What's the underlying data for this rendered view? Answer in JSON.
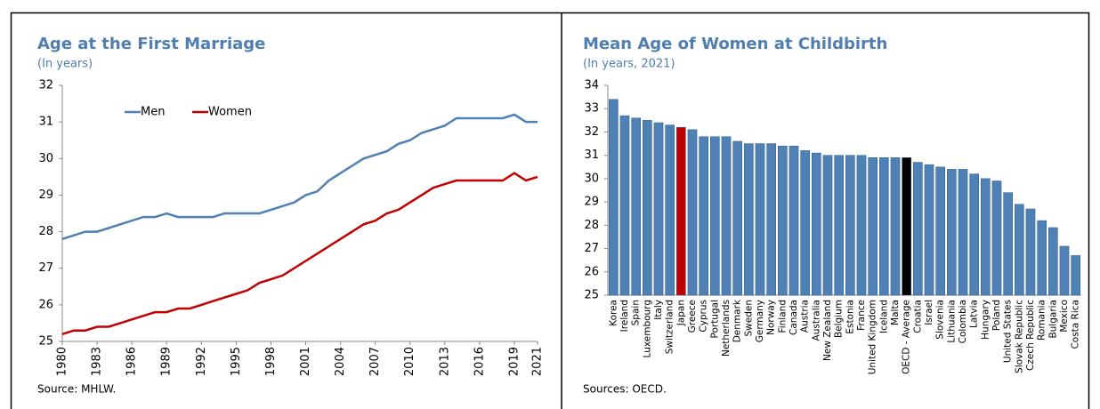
{
  "chart_data": [
    {
      "type": "line",
      "title": "Age at the First Marriage",
      "subtitle": "(In years)",
      "source": "Source: MHLW.",
      "x": [
        1980,
        1981,
        1982,
        1983,
        1984,
        1985,
        1986,
        1987,
        1988,
        1989,
        1990,
        1991,
        1992,
        1993,
        1994,
        1995,
        1996,
        1997,
        1998,
        1999,
        2000,
        2001,
        2002,
        2003,
        2004,
        2005,
        2006,
        2007,
        2008,
        2009,
        2010,
        2011,
        2012,
        2013,
        2014,
        2015,
        2016,
        2017,
        2018,
        2019,
        2020,
        2021
      ],
      "series": [
        {
          "name": "Men",
          "color": "#4f81b4",
          "values": [
            27.8,
            27.9,
            28.0,
            28.0,
            28.1,
            28.2,
            28.3,
            28.4,
            28.4,
            28.5,
            28.4,
            28.4,
            28.4,
            28.4,
            28.5,
            28.5,
            28.5,
            28.5,
            28.6,
            28.7,
            28.8,
            29.0,
            29.1,
            29.4,
            29.6,
            29.8,
            30.0,
            30.1,
            30.2,
            30.4,
            30.5,
            30.7,
            30.8,
            30.9,
            31.1,
            31.1,
            31.1,
            31.1,
            31.1,
            31.2,
            31.0,
            31.0
          ]
        },
        {
          "name": "Women",
          "color": "#c00000",
          "values": [
            25.2,
            25.3,
            25.3,
            25.4,
            25.4,
            25.5,
            25.6,
            25.7,
            25.8,
            25.8,
            25.9,
            25.9,
            26.0,
            26.1,
            26.2,
            26.3,
            26.4,
            26.6,
            26.7,
            26.8,
            27.0,
            27.2,
            27.4,
            27.6,
            27.8,
            28.0,
            28.2,
            28.3,
            28.5,
            28.6,
            28.8,
            29.0,
            29.2,
            29.3,
            29.4,
            29.4,
            29.4,
            29.4,
            29.4,
            29.6,
            29.4,
            29.5
          ]
        }
      ],
      "xlim": [
        1980,
        2021
      ],
      "xticks": [
        1980,
        1983,
        1986,
        1989,
        1992,
        1995,
        1998,
        2001,
        2004,
        2007,
        2010,
        2013,
        2016,
        2019,
        2021
      ],
      "ylim": [
        25,
        32
      ],
      "yticks": [
        25,
        26,
        27,
        28,
        29,
        30,
        31,
        32
      ],
      "grid": false,
      "legend": "upper left"
    },
    {
      "type": "bar",
      "title": "Mean Age of Women at Childbirth",
      "subtitle": "(In years, 2021)",
      "source": "Sources: OECD.",
      "categories": [
        "Korea",
        "Ireland",
        "Spain",
        "Luxembourg",
        "Italy",
        "Switzerland",
        "Japan",
        "Greece",
        "Cyprus",
        "Portugal",
        "Netherlands",
        "Denmark",
        "Sweden",
        "Germany",
        "Norway",
        "Finland",
        "Canada",
        "Austria",
        "Australia",
        "New Zealand",
        "Belgium",
        "Estonia",
        "France",
        "United Kingdom",
        "Iceland",
        "Malta",
        "OECD - Average",
        "Croatia",
        "Israel",
        "Slovenia",
        "Lithuania",
        "Colombia",
        "Latvia",
        "Hungary",
        "Poland",
        "United States",
        "Slovak Republic",
        "Czech Republic",
        "Romania",
        "Bulgaria",
        "Mexico",
        "Costa Rica"
      ],
      "values": [
        33.4,
        32.7,
        32.6,
        32.5,
        32.4,
        32.3,
        32.2,
        32.1,
        31.8,
        31.8,
        31.8,
        31.6,
        31.5,
        31.5,
        31.5,
        31.4,
        31.4,
        31.2,
        31.1,
        31.0,
        31.0,
        31.0,
        31.0,
        30.9,
        30.9,
        30.9,
        30.9,
        30.7,
        30.6,
        30.5,
        30.4,
        30.4,
        30.2,
        30.0,
        29.9,
        29.4,
        28.9,
        28.7,
        28.2,
        27.9,
        27.1,
        26.7
      ],
      "colors": [
        "#4f81b4",
        "#4f81b4",
        "#4f81b4",
        "#4f81b4",
        "#4f81b4",
        "#4f81b4",
        "#c00000",
        "#4f81b4",
        "#4f81b4",
        "#4f81b4",
        "#4f81b4",
        "#4f81b4",
        "#4f81b4",
        "#4f81b4",
        "#4f81b4",
        "#4f81b4",
        "#4f81b4",
        "#4f81b4",
        "#4f81b4",
        "#4f81b4",
        "#4f81b4",
        "#4f81b4",
        "#4f81b4",
        "#4f81b4",
        "#4f81b4",
        "#4f81b4",
        "#000000",
        "#4f81b4",
        "#4f81b4",
        "#4f81b4",
        "#4f81b4",
        "#4f81b4",
        "#4f81b4",
        "#4f81b4",
        "#4f81b4",
        "#4f81b4",
        "#4f81b4",
        "#4f81b4",
        "#4f81b4",
        "#4f81b4",
        "#4f81b4",
        "#4f81b4"
      ],
      "ylim": [
        25,
        34
      ],
      "yticks": [
        25,
        26,
        27,
        28,
        29,
        30,
        31,
        32,
        33,
        34
      ],
      "grid": false
    }
  ]
}
